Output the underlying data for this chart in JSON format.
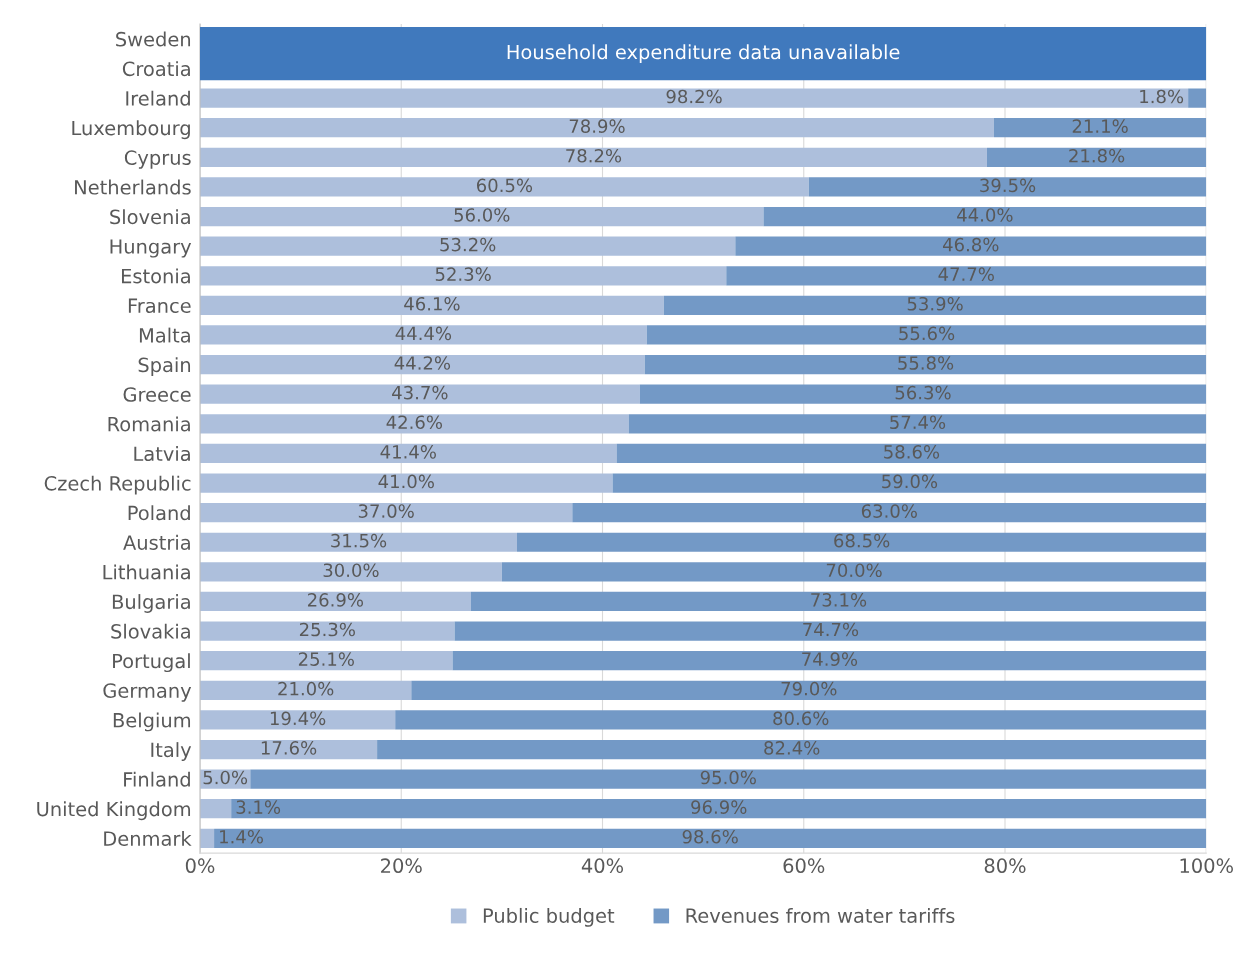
{
  "chart_data": {
    "type": "bar",
    "orientation": "horizontal",
    "stacked": true,
    "categories": [
      "Sweden",
      "Croatia",
      "Ireland",
      "Luxembourg",
      "Cyprus",
      "Netherlands",
      "Slovenia",
      "Hungary",
      "Estonia",
      "France",
      "Malta",
      "Spain",
      "Greece",
      "Romania",
      "Latvia",
      "Czech Republic",
      "Poland",
      "Austria",
      "Lithuania",
      "Bulgaria",
      "Slovakia",
      "Portugal",
      "Germany",
      "Belgium",
      "Italy",
      "Finland",
      "United Kingdom",
      "Denmark"
    ],
    "series": [
      {
        "name": "Public budget",
        "color": "#adbfdc",
        "values": [
          null,
          null,
          98.2,
          78.9,
          78.2,
          60.5,
          56.0,
          53.2,
          52.3,
          46.1,
          44.4,
          44.2,
          43.7,
          42.6,
          41.4,
          41.0,
          37.0,
          31.5,
          30.0,
          26.9,
          25.3,
          25.1,
          21.0,
          19.4,
          17.6,
          5.0,
          3.1,
          1.4
        ],
        "value_labels": [
          null,
          null,
          "98.2%",
          "78.9%",
          "78.2%",
          "60.5%",
          "56.0%",
          "53.2%",
          "52.3%",
          "46.1%",
          "44.4%",
          "44.2%",
          "43.7%",
          "42.6%",
          "41.4%",
          "41.0%",
          "37.0%",
          "31.5%",
          "30.0%",
          "26.9%",
          "25.3%",
          "25.1%",
          "21.0%",
          "19.4%",
          "17.6%",
          "5.0%",
          "3.1%",
          "1.4%"
        ]
      },
      {
        "name": "Revenues from water tariffs",
        "color": "#7399c6",
        "values": [
          null,
          null,
          1.8,
          21.1,
          21.8,
          39.5,
          44.0,
          46.8,
          47.7,
          53.9,
          55.6,
          55.8,
          56.3,
          57.4,
          58.6,
          59.0,
          63.0,
          68.5,
          70.0,
          73.1,
          74.7,
          74.9,
          79.0,
          80.6,
          82.4,
          95.0,
          96.9,
          98.6
        ],
        "value_labels": [
          null,
          null,
          "1.8%",
          "21.1%",
          "21.8%",
          "39.5%",
          "44.0%",
          "46.8%",
          "47.7%",
          "53.9%",
          "55.6%",
          "55.8%",
          "56.3%",
          "57.4%",
          "58.6%",
          "59.0%",
          "63.0%",
          "68.5%",
          "70.0%",
          "73.1%",
          "74.7%",
          "74.9%",
          "79.0%",
          "80.6%",
          "82.4%",
          "95.0%",
          "96.9%",
          "98.6%"
        ]
      }
    ],
    "xlim": [
      0,
      100
    ],
    "xticks": [
      {
        "value": 0,
        "label": "0%"
      },
      {
        "value": 20,
        "label": "20%"
      },
      {
        "value": 40,
        "label": "40%"
      },
      {
        "value": 60,
        "label": "60%"
      },
      {
        "value": 80,
        "label": "80%"
      },
      {
        "value": 100,
        "label": "100%"
      }
    ],
    "grid": "x",
    "legend": "bottom",
    "annotations": [
      "Household expenditure data unavailable"
    ]
  }
}
